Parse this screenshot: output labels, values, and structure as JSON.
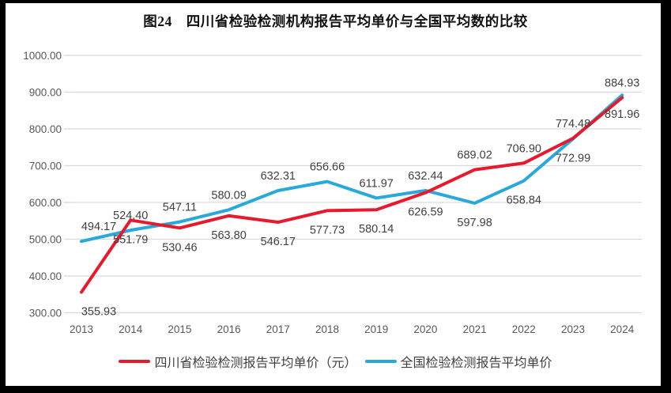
{
  "title": "图24　四川省检验检测机构报告平均单价与全国平均数的比较",
  "colors": {
    "frame": "#000000",
    "background": "#ffffff",
    "grid": "#d9d9d9",
    "axis_text": "#595959",
    "data_label_text": "#404040",
    "sichuan_red": "#e8192c",
    "national_blue": "#29a8dc"
  },
  "chart_data": {
    "type": "line",
    "categories": [
      "2013",
      "2014",
      "2015",
      "2016",
      "2017",
      "2018",
      "2019",
      "2020",
      "2021",
      "2022",
      "2023",
      "2024"
    ],
    "series": [
      {
        "id": "sichuan",
        "name": "四川省检验检测报告平均单价（元）",
        "color": "#e8192c",
        "values": [
          355.93,
          551.79,
          530.46,
          563.8,
          546.17,
          577.73,
          580.14,
          626.59,
          689.02,
          706.9,
          774.48,
          884.93
        ],
        "label_side": [
          "below",
          "below",
          "below",
          "below",
          "below",
          "below",
          "below",
          "below",
          "above",
          "above",
          "above",
          "above"
        ]
      },
      {
        "id": "national",
        "name": "全国检验检测报告平均单价",
        "color": "#29a8dc",
        "values": [
          494.17,
          524.4,
          547.11,
          580.09,
          632.31,
          656.66,
          611.97,
          632.44,
          597.98,
          658.84,
          772.99,
          891.96
        ],
        "label_side": [
          "above",
          "above",
          "above",
          "above",
          "above",
          "above",
          "above",
          "above",
          "below",
          "below",
          "below",
          "below"
        ]
      }
    ],
    "title": "图24　四川省检验检测机构报告平均单价与全国平均数的比较",
    "xlabel": "",
    "ylabel": "",
    "ylim": [
      300,
      1000
    ],
    "ytick_step": 100,
    "ytick_labels": [
      "1000.00",
      "900.00",
      "800.00",
      "700.00",
      "600.00",
      "500.00",
      "400.00",
      "300.00"
    ],
    "grid": true,
    "legend_position": "bottom"
  }
}
